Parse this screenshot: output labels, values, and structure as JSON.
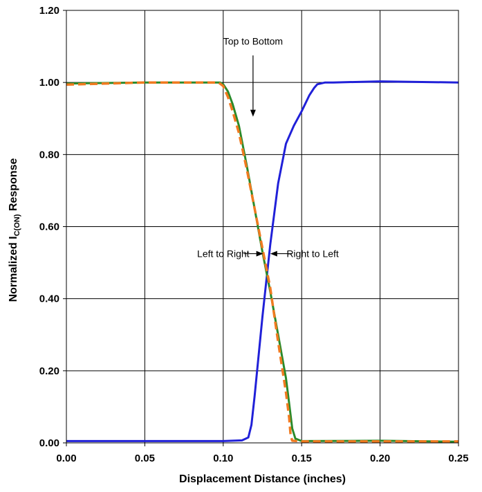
{
  "chart_data": {
    "type": "line",
    "xlabel": "Displacement Distance (inches)",
    "ylabel": {
      "prefix": "Normalized I",
      "subscript": "C(ON)",
      "suffix": " Response"
    },
    "xlim": [
      0.0,
      0.25
    ],
    "ylim": [
      0.0,
      1.2
    ],
    "x_ticks": [
      0.0,
      0.05,
      0.1,
      0.15,
      0.2,
      0.25
    ],
    "x_tick_labels": [
      "0.00",
      "0.05",
      "0.10",
      "0.15",
      "0.20",
      "0.25"
    ],
    "y_ticks": [
      0.0,
      0.2,
      0.4,
      0.6,
      0.8,
      1.0,
      1.2
    ],
    "y_tick_labels": [
      "0.00",
      "0.20",
      "0.40",
      "0.60",
      "0.80",
      "1.00",
      "1.20"
    ],
    "grid": true,
    "series": [
      {
        "color": "#2020d8",
        "style": "solid",
        "x": [
          0.0,
          0.05,
          0.1,
          0.112,
          0.116,
          0.118,
          0.12,
          0.125,
          0.13,
          0.135,
          0.14,
          0.145,
          0.15,
          0.155,
          0.158,
          0.16,
          0.165,
          0.17,
          0.2,
          0.25
        ],
        "y": [
          0.005,
          0.005,
          0.005,
          0.007,
          0.015,
          0.05,
          0.13,
          0.35,
          0.55,
          0.72,
          0.83,
          0.88,
          0.92,
          0.965,
          0.985,
          0.995,
          1.0,
          1.0,
          1.003,
          1.0
        ]
      },
      {
        "color": "#2a8a2a",
        "style": "solid",
        "x": [
          0.0,
          0.05,
          0.098,
          0.1,
          0.103,
          0.106,
          0.11,
          0.115,
          0.12,
          0.125,
          0.13,
          0.135,
          0.14,
          0.142,
          0.144,
          0.146,
          0.15,
          0.2,
          0.25
        ],
        "y": [
          0.997,
          1.0,
          1.0,
          0.995,
          0.975,
          0.94,
          0.88,
          0.77,
          0.65,
          0.53,
          0.42,
          0.3,
          0.18,
          0.11,
          0.04,
          0.012,
          0.005,
          0.006,
          0.003
        ]
      },
      {
        "color": "#f07a20",
        "style": "dashed",
        "x": [
          0.0,
          0.05,
          0.097,
          0.1,
          0.103,
          0.106,
          0.11,
          0.115,
          0.12,
          0.125,
          0.13,
          0.135,
          0.14,
          0.142,
          0.143,
          0.144,
          0.15,
          0.2,
          0.25
        ],
        "y": [
          0.994,
          1.0,
          1.0,
          0.99,
          0.96,
          0.92,
          0.86,
          0.76,
          0.65,
          0.54,
          0.43,
          0.28,
          0.14,
          0.07,
          0.02,
          0.006,
          0.004,
          0.004,
          0.004
        ]
      }
    ],
    "annotations": [
      {
        "text": "Top to Bottom",
        "text_x": 0.119,
        "text_y": 1.115,
        "arrow_from": [
          0.119,
          1.075
        ],
        "arrow_to": [
          0.119,
          0.905
        ]
      },
      {
        "text": "Left to Right",
        "text_x": 0.1,
        "text_y": 0.525,
        "arrow_from": [
          0.113,
          0.525
        ],
        "arrow_to": [
          0.1255,
          0.525
        ]
      },
      {
        "text": "Right to Left",
        "text_x": 0.157,
        "text_y": 0.525,
        "arrow_from": [
          0.144,
          0.525
        ],
        "arrow_to": [
          0.13,
          0.525
        ]
      }
    ]
  }
}
